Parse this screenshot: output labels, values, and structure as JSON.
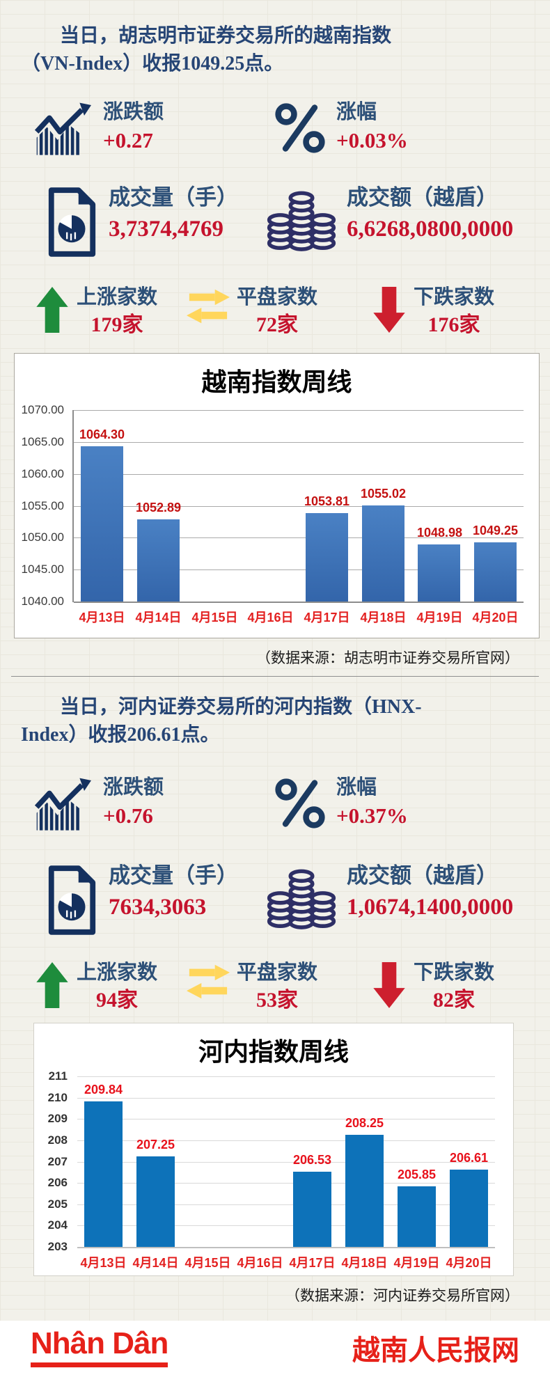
{
  "colors": {
    "page_background": "#f2f1ea",
    "headline_navy": "#264575",
    "label_navy": "#2d5078",
    "value_crimson": "#c5132d",
    "icon_navy": "#14305e",
    "coins_indigo": "#2e2f66",
    "up_green": "#1e8c3c",
    "flat_yellow": "#ffd65c",
    "down_red": "#cd1f2e",
    "footer_red": "#e62119",
    "chart1_bar": "#4a81c4",
    "chart2_bar": "#0d72b9"
  },
  "sections": {
    "hcm": {
      "title_line1": "当日，胡志明市证券交易所的越南指数",
      "title_line2": "（VN-Index）收报1049.25点。",
      "change_label": "涨跌额",
      "change_value": "+0.27",
      "percent_label": "涨幅",
      "percent_value": "+0.03%",
      "volume_label": "成交量（手）",
      "volume_value": "3,7374,4769",
      "turnover_label": "成交额（越盾）",
      "turnover_value": "6,6268,0800,0000",
      "up_label": "上涨家数",
      "up_value": "179家",
      "flat_label": "平盘家数",
      "flat_value": "72家",
      "down_label": "下跌家数",
      "down_value": "176家",
      "source": "（数据来源：胡志明市证券交易所官网）"
    },
    "hanoi": {
      "title_line1": "当日，河内证券交易所的河内指数（HNX-",
      "title_line2": "Index）收报206.61点。",
      "change_label": "涨跌额",
      "change_value": "+0.76",
      "percent_label": "涨幅",
      "percent_value": "+0.37%",
      "volume_label": "成交量（手）",
      "volume_value": "7634,3063",
      "turnover_label": "成交额（越盾）",
      "turnover_value": "1,0674,1400,0000",
      "up_label": "上涨家数",
      "up_value": "94家",
      "flat_label": "平盘家数",
      "flat_value": "53家",
      "down_label": "下跌家数",
      "down_value": "82家",
      "source": "（数据来源：河内证券交易所官网）"
    }
  },
  "chart_data": [
    {
      "type": "bar",
      "title": "越南指数周线",
      "categories": [
        "4月13日",
        "4月14日",
        "4月15日",
        "4月16日",
        "4月17日",
        "4月18日",
        "4月19日",
        "4月20日"
      ],
      "values": [
        1064.3,
        1052.89,
        null,
        null,
        1053.81,
        1055.02,
        1048.98,
        1049.25
      ],
      "labels": [
        "1064.30",
        "1052.89",
        "",
        "",
        "1053.81",
        "1055.02",
        "1048.98",
        "1049.25"
      ],
      "xlabel": "",
      "ylabel": "",
      "ylim": [
        1040,
        1070
      ],
      "yticks": [
        "1070.00",
        "1065.00",
        "1060.00",
        "1055.00",
        "1050.00",
        "1045.00",
        "1040.00"
      ],
      "grid": true,
      "legend": "none",
      "bar_gradient": true,
      "bar_color": "#4a81c4",
      "bar_color_bottom": "#3365aa",
      "bar_width_ratio": 0.76,
      "label_color": "#c41111",
      "xtick_color": "#e32020"
    },
    {
      "type": "bar",
      "title": "河内指数周线",
      "categories": [
        "4月13日",
        "4月14日",
        "4月15日",
        "4月16日",
        "4月17日",
        "4月18日",
        "4月19日",
        "4月20日"
      ],
      "values": [
        209.84,
        207.25,
        null,
        null,
        206.53,
        208.25,
        205.85,
        206.61
      ],
      "labels": [
        "209.84",
        "207.25",
        "",
        "",
        "206.53",
        "208.25",
        "205.85",
        "206.61"
      ],
      "xlabel": "",
      "ylabel": "",
      "ylim": [
        203,
        211
      ],
      "yticks": [
        "211",
        "210",
        "209",
        "208",
        "207",
        "206",
        "205",
        "204",
        "203"
      ],
      "grid": true,
      "legend": "none",
      "bar_gradient": false,
      "bar_color": "#0d72b9",
      "bar_color_bottom": "#0d72b9",
      "bar_width_ratio": 0.73,
      "label_color": "#e8121c",
      "xtick_color": "#e32020"
    }
  ],
  "footer": {
    "logo": "Nhân Dân",
    "site_name": "越南人民报网"
  }
}
